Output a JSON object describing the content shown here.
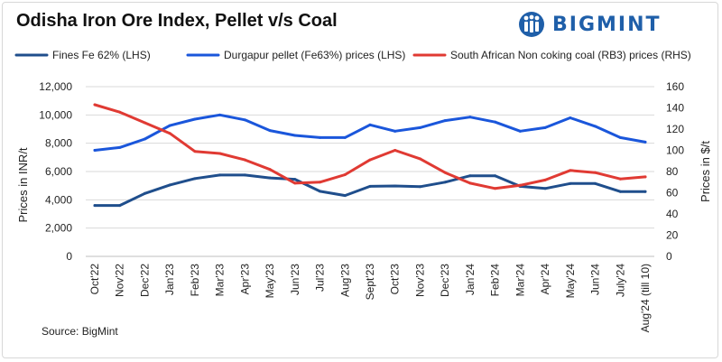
{
  "header": {
    "title": "Odisha Iron Ore Index, Pellet v/s Coal",
    "logo_text": "BIGMINT"
  },
  "footer": {
    "source": "Source: BigMint"
  },
  "chart_data": {
    "type": "line",
    "title": "Odisha Iron Ore Index, Pellet v/s Coal",
    "categories": [
      "Oct'22",
      "Nov'22",
      "Dec'22",
      "Jan'23",
      "Feb'23",
      "Mar'23",
      "Apr'23",
      "May'23",
      "Jun'23",
      "Jul'23",
      "Aug'23",
      "Sept'23",
      "Oct'23",
      "Nov'23",
      "Dec'23",
      "Jan'24",
      "Feb'24",
      "Mar'24",
      "Apr'24",
      "May'24",
      "Jun'24",
      "July'24",
      "Aug'24 (till 10)"
    ],
    "ylabel_left": "Prices in INR/t",
    "ylabel_right": "Prices in $/t",
    "ylim_left": [
      0,
      12000
    ],
    "yticks_left": [
      0,
      2000,
      4000,
      6000,
      8000,
      10000,
      12000
    ],
    "ytick_labels_left": [
      "0",
      "2,000",
      "4,000",
      "6,000",
      "8,000",
      "10,000",
      "12,000"
    ],
    "ylim_right": [
      0,
      160
    ],
    "yticks_right": [
      0,
      20,
      40,
      60,
      80,
      100,
      120,
      140,
      160
    ],
    "ytick_labels_right": [
      "0",
      "20",
      "40",
      "60",
      "80",
      "100",
      "120",
      "140",
      "160"
    ],
    "grid": true,
    "legend_position": "top",
    "series": [
      {
        "name": "Fines Fe 62% (LHS)",
        "axis": "left",
        "color": "#1f4e8c",
        "values": [
          3600,
          3600,
          4450,
          5050,
          5500,
          5750,
          5750,
          5550,
          5450,
          4600,
          4300,
          4950,
          4980,
          4930,
          5250,
          5700,
          5700,
          4950,
          4800,
          5150,
          5150,
          4580,
          4580
        ]
      },
      {
        "name": "Durgapur pellet (Fe63%) prices (LHS)",
        "axis": "left",
        "color": "#1a56db",
        "values": [
          7500,
          7700,
          8300,
          9250,
          9700,
          10000,
          9650,
          8900,
          8550,
          8400,
          8400,
          9300,
          8850,
          9100,
          9600,
          9850,
          9500,
          8850,
          9100,
          9800,
          9200,
          8400,
          8080
        ]
      },
      {
        "name": "South African Non coking coal (RB3) prices (RHS)",
        "axis": "right",
        "color": "#e03a33",
        "values": [
          143,
          136,
          126,
          116,
          99,
          97,
          91,
          82,
          69,
          70,
          77,
          91,
          100,
          92,
          79,
          69,
          64,
          67,
          72,
          81,
          79,
          73,
          75
        ]
      }
    ]
  }
}
